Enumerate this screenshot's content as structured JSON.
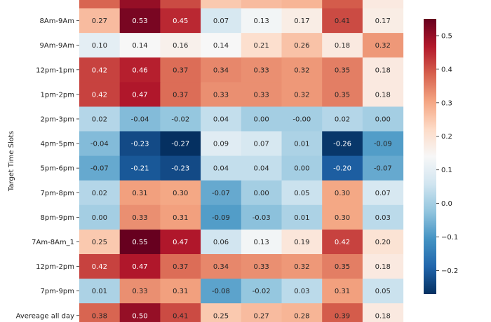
{
  "chart_data": {
    "type": "heatmap",
    "ylabel": "Target Time Slots",
    "rows": [
      "8Am-9Am",
      "9Am-9Am",
      "12pm-1pm",
      "1pm-2pm",
      "2pm-3pm",
      "4pm-5pm",
      "5pm-6pm",
      "7pm-8pm",
      "8pm-9pm",
      "7Am-8Am_1",
      "12pm-2pm",
      "7pm-9pm",
      "Avereage all day"
    ],
    "values": [
      [
        0.27,
        0.53,
        0.45,
        0.07,
        0.13,
        0.17,
        0.41,
        0.17
      ],
      [
        0.1,
        0.14,
        0.16,
        0.14,
        0.21,
        0.26,
        0.18,
        0.32
      ],
      [
        0.42,
        0.46,
        0.37,
        0.34,
        0.33,
        0.32,
        0.35,
        0.18
      ],
      [
        0.42,
        0.47,
        0.37,
        0.33,
        0.33,
        0.32,
        0.35,
        0.18
      ],
      [
        0.02,
        -0.04,
        -0.02,
        0.04,
        0.0,
        -0.0,
        0.02,
        0.0
      ],
      [
        -0.04,
        -0.23,
        -0.27,
        0.09,
        0.07,
        0.01,
        -0.26,
        -0.09
      ],
      [
        -0.07,
        -0.21,
        -0.23,
        0.04,
        0.04,
        0.0,
        -0.2,
        -0.07
      ],
      [
        0.02,
        0.31,
        0.3,
        -0.07,
        0.0,
        0.05,
        0.3,
        0.07
      ],
      [
        0.0,
        0.33,
        0.31,
        -0.09,
        -0.03,
        0.01,
        0.3,
        0.03
      ],
      [
        0.25,
        0.55,
        0.47,
        0.06,
        0.13,
        0.19,
        0.42,
        0.2
      ],
      [
        0.42,
        0.47,
        0.37,
        0.34,
        0.33,
        0.32,
        0.35,
        0.18
      ],
      [
        0.01,
        0.33,
        0.31,
        -0.08,
        -0.02,
        0.03,
        0.31,
        0.05
      ],
      [
        0.38,
        0.5,
        0.41,
        0.25,
        0.27,
        0.28,
        0.39,
        0.18
      ]
    ],
    "display_labels": [
      [
        "0.27",
        "0.53",
        "0.45",
        "0.07",
        "0.13",
        "0.17",
        "0.41",
        "0.17"
      ],
      [
        "0.10",
        "0.14",
        "0.16",
        "0.14",
        "0.21",
        "0.26",
        "0.18",
        "0.32"
      ],
      [
        "0.42",
        "0.46",
        "0.37",
        "0.34",
        "0.33",
        "0.32",
        "0.35",
        "0.18"
      ],
      [
        "0.42",
        "0.47",
        "0.37",
        "0.33",
        "0.33",
        "0.32",
        "0.35",
        "0.18"
      ],
      [
        "0.02",
        "-0.04",
        "-0.02",
        "0.04",
        "0.00",
        "-0.00",
        "0.02",
        "0.00"
      ],
      [
        "-0.04",
        "-0.23",
        "-0.27",
        "0.09",
        "0.07",
        "0.01",
        "-0.26",
        "-0.09"
      ],
      [
        "-0.07",
        "-0.21",
        "-0.23",
        "0.04",
        "0.04",
        "0.00",
        "-0.20",
        "-0.07"
      ],
      [
        "0.02",
        "0.31",
        "0.30",
        "-0.07",
        "0.00",
        "0.05",
        "0.30",
        "0.07"
      ],
      [
        "0.00",
        "0.33",
        "0.31",
        "-0.09",
        "-0.03",
        "0.01",
        "0.30",
        "0.03"
      ],
      [
        "0.25",
        "0.55",
        "0.47",
        "0.06",
        "0.13",
        "0.19",
        "0.42",
        "0.20"
      ],
      [
        "0.42",
        "0.47",
        "0.37",
        "0.34",
        "0.33",
        "0.32",
        "0.35",
        "0.18"
      ],
      [
        "0.01",
        "0.33",
        "0.31",
        "-0.08",
        "-0.02",
        "0.03",
        "0.31",
        "0.05"
      ],
      [
        "0.38",
        "0.50",
        "0.41",
        "0.25",
        "0.27",
        "0.28",
        "0.39",
        "0.18"
      ]
    ],
    "colormap": "RdBu_r",
    "vmin": -0.27,
    "vmax": 0.55,
    "colorbar_ticks": [
      {
        "value": 0.5,
        "label": "0.5"
      },
      {
        "value": 0.4,
        "label": "0.4"
      },
      {
        "value": 0.3,
        "label": "0.3"
      },
      {
        "value": 0.2,
        "label": "0.2"
      },
      {
        "value": 0.1,
        "label": "0.1"
      },
      {
        "value": 0.0,
        "label": "0.0"
      },
      {
        "value": -0.1,
        "label": "−0.1"
      },
      {
        "value": -0.2,
        "label": "−0.2"
      }
    ],
    "legend": "colorbar-right"
  }
}
